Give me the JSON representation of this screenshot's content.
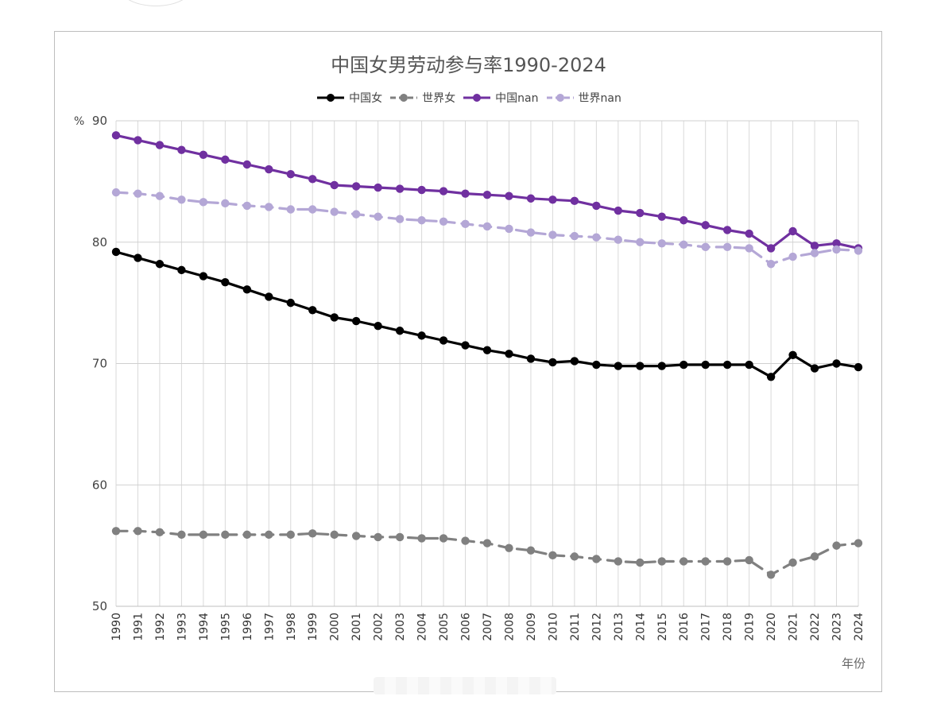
{
  "chart_data": {
    "type": "line",
    "title": "中国女男劳动参与率1990-2024",
    "ylabel": "%",
    "xlabel": "年份",
    "ylim": [
      50,
      90
    ],
    "yticks": [
      50,
      60,
      70,
      80,
      90
    ],
    "grid": true,
    "legend_position": "top",
    "x": [
      "1990",
      "1991",
      "1992",
      "1993",
      "1994",
      "1995",
      "1996",
      "1997",
      "1998",
      "1999",
      "2000",
      "2001",
      "2002",
      "2003",
      "2004",
      "2005",
      "2006",
      "2007",
      "2008",
      "2009",
      "2010",
      "2011",
      "2012",
      "2013",
      "2014",
      "2015",
      "2016",
      "2017",
      "2018",
      "2019",
      "2020",
      "2021",
      "2022",
      "2023",
      "2024"
    ],
    "series": [
      {
        "name": "中国女",
        "color": "#000000",
        "dashed": false,
        "values": [
          79.2,
          78.7,
          78.2,
          77.7,
          77.2,
          76.7,
          76.1,
          75.5,
          75.0,
          74.4,
          73.8,
          73.5,
          73.1,
          72.7,
          72.3,
          71.9,
          71.5,
          71.1,
          70.8,
          70.4,
          70.1,
          70.2,
          69.9,
          69.8,
          69.8,
          69.8,
          69.9,
          69.9,
          69.9,
          69.9,
          68.9,
          70.7,
          69.6,
          70.0,
          69.7
        ]
      },
      {
        "name": "世界女",
        "color": "#808080",
        "dashed": true,
        "values": [
          56.2,
          56.2,
          56.1,
          55.9,
          55.9,
          55.9,
          55.9,
          55.9,
          55.9,
          56.0,
          55.9,
          55.8,
          55.7,
          55.7,
          55.6,
          55.6,
          55.4,
          55.2,
          54.8,
          54.6,
          54.2,
          54.1,
          53.9,
          53.7,
          53.6,
          53.7,
          53.7,
          53.7,
          53.7,
          53.8,
          52.6,
          53.6,
          54.1,
          55.0,
          55.2
        ]
      },
      {
        "name": "中国nan",
        "color": "#7030a0",
        "dashed": false,
        "values": [
          88.8,
          88.4,
          88.0,
          87.6,
          87.2,
          86.8,
          86.4,
          86.0,
          85.6,
          85.2,
          84.7,
          84.6,
          84.5,
          84.4,
          84.3,
          84.2,
          84.0,
          83.9,
          83.8,
          83.6,
          83.5,
          83.4,
          83.0,
          82.6,
          82.4,
          82.1,
          81.8,
          81.4,
          81.0,
          80.7,
          79.5,
          80.9,
          79.7,
          79.9,
          79.5
        ]
      },
      {
        "name": "世界nan",
        "color": "#b4a7d6",
        "dashed": true,
        "values": [
          84.1,
          84.0,
          83.8,
          83.5,
          83.3,
          83.2,
          83.0,
          82.9,
          82.7,
          82.7,
          82.5,
          82.3,
          82.1,
          81.9,
          81.8,
          81.7,
          81.5,
          81.3,
          81.1,
          80.8,
          80.6,
          80.5,
          80.4,
          80.2,
          80.0,
          79.9,
          79.8,
          79.6,
          79.6,
          79.5,
          78.2,
          78.8,
          79.1,
          79.4,
          79.3
        ]
      }
    ]
  }
}
